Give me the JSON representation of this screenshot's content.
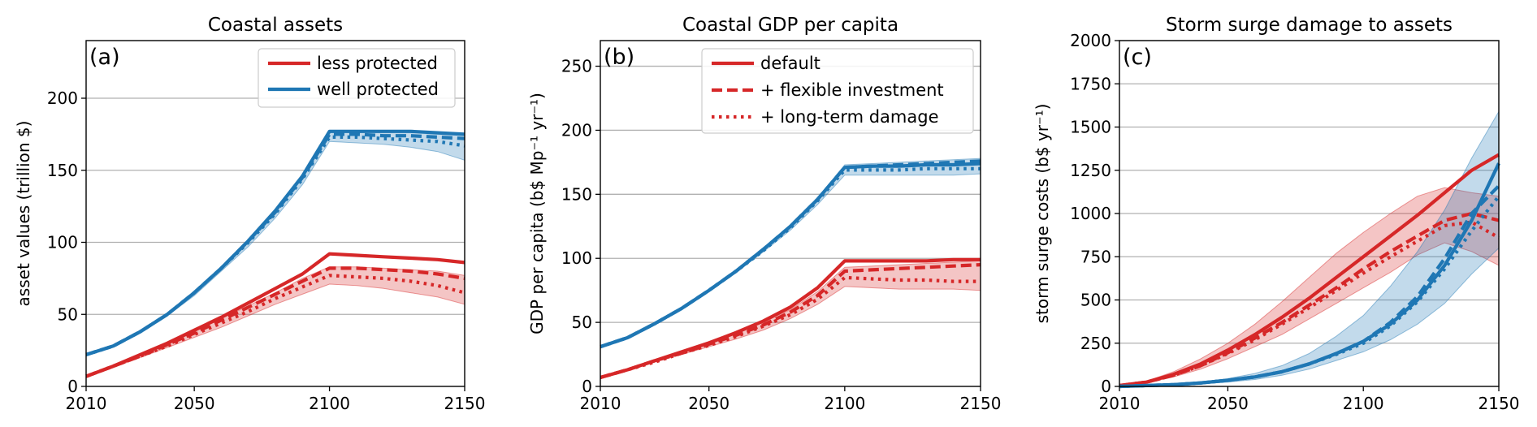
{
  "colors": {
    "red": "#d62728",
    "blue": "#1f77b4",
    "grid": "#b0b0b0"
  },
  "chart_data": [
    {
      "type": "line",
      "panel_label": "(a)",
      "title": "Coastal assets",
      "xlabel": "",
      "ylabel": "asset values (trillion $)",
      "xlim": [
        2010,
        2150
      ],
      "ylim": [
        0,
        240
      ],
      "xticks": [
        2010,
        2050,
        2100,
        2150
      ],
      "yticks": [
        0,
        50,
        100,
        150,
        200
      ],
      "grid": "horizontal",
      "legend": {
        "position": "top-right",
        "entries": [
          {
            "label": "less protected",
            "color": "#d62728",
            "style": "solid"
          },
          {
            "label": "well protected",
            "color": "#1f77b4",
            "style": "solid"
          }
        ]
      },
      "series": [
        {
          "color": "#d62728",
          "style": "solid",
          "x": [
            2010,
            2020,
            2030,
            2040,
            2050,
            2060,
            2070,
            2080,
            2090,
            2100,
            2110,
            2120,
            2130,
            2140,
            2150
          ],
          "y": [
            7,
            14,
            22,
            30,
            39,
            48,
            58,
            68,
            78,
            92,
            91,
            90,
            89,
            88,
            86
          ]
        },
        {
          "color": "#d62728",
          "style": "dashed",
          "x": [
            2010,
            2020,
            2030,
            2040,
            2050,
            2060,
            2070,
            2080,
            2090,
            2100,
            2110,
            2120,
            2130,
            2140,
            2150
          ],
          "y": [
            7,
            14,
            21,
            29,
            37,
            46,
            55,
            64,
            73,
            82,
            82,
            81,
            80,
            78,
            75
          ]
        },
        {
          "color": "#d62728",
          "style": "dotted",
          "x": [
            2010,
            2020,
            2030,
            2040,
            2050,
            2060,
            2070,
            2080,
            2090,
            2100,
            2110,
            2120,
            2130,
            2140,
            2150
          ],
          "y": [
            7,
            14,
            21,
            28,
            36,
            44,
            52,
            61,
            69,
            77,
            76,
            75,
            73,
            70,
            65
          ]
        },
        {
          "color": "#1f77b4",
          "style": "solid",
          "x": [
            2010,
            2020,
            2030,
            2040,
            2050,
            2060,
            2070,
            2080,
            2090,
            2100,
            2110,
            2120,
            2130,
            2140,
            2150
          ],
          "y": [
            22,
            28,
            38,
            50,
            65,
            82,
            101,
            122,
            146,
            177,
            177,
            177,
            177,
            176,
            175
          ]
        },
        {
          "color": "#1f77b4",
          "style": "dashed",
          "x": [
            2010,
            2020,
            2030,
            2040,
            2050,
            2060,
            2070,
            2080,
            2090,
            2100,
            2110,
            2120,
            2130,
            2140,
            2150
          ],
          "y": [
            22,
            28,
            38,
            50,
            65,
            82,
            101,
            121,
            145,
            175,
            175,
            174,
            174,
            173,
            172
          ]
        },
        {
          "color": "#1f77b4",
          "style": "dotted",
          "x": [
            2010,
            2020,
            2030,
            2040,
            2050,
            2060,
            2070,
            2080,
            2090,
            2100,
            2110,
            2120,
            2130,
            2140,
            2150
          ],
          "y": [
            22,
            28,
            38,
            50,
            65,
            82,
            100,
            120,
            144,
            173,
            173,
            172,
            171,
            170,
            167
          ]
        }
      ],
      "bands": [
        {
          "color": "#d62728",
          "x": [
            2010,
            2020,
            2030,
            2040,
            2050,
            2060,
            2070,
            2080,
            2090,
            2100,
            2110,
            2120,
            2130,
            2140,
            2150
          ],
          "lower": [
            7,
            13,
            20,
            27,
            34,
            41,
            49,
            57,
            64,
            71,
            70,
            68,
            65,
            62,
            57
          ],
          "upper": [
            7,
            14,
            22,
            30,
            38,
            47,
            56,
            65,
            75,
            83,
            83,
            82,
            81,
            80,
            77
          ]
        },
        {
          "color": "#1f77b4",
          "x": [
            2010,
            2020,
            2030,
            2040,
            2050,
            2060,
            2070,
            2080,
            2090,
            2100,
            2110,
            2120,
            2130,
            2140,
            2150
          ],
          "lower": [
            22,
            28,
            37,
            49,
            63,
            80,
            97,
            117,
            140,
            170,
            169,
            168,
            166,
            163,
            157
          ],
          "upper": [
            22,
            28,
            38,
            50,
            65,
            82,
            101,
            122,
            146,
            177,
            177,
            177,
            177,
            176,
            175
          ]
        }
      ]
    },
    {
      "type": "line",
      "panel_label": "(b)",
      "title": "Coastal GDP per capita",
      "xlabel": "",
      "ylabel": "GDP per capita (b$ Mp⁻¹ yr⁻¹)",
      "xlim": [
        2010,
        2150
      ],
      "ylim": [
        0,
        270
      ],
      "xticks": [
        2010,
        2050,
        2100,
        2150
      ],
      "yticks": [
        0,
        50,
        100,
        150,
        200,
        250
      ],
      "grid": "horizontal",
      "legend": {
        "position": "top-right",
        "entries": [
          {
            "label": "default",
            "color": "#d62728",
            "style": "solid"
          },
          {
            "label": "+ flexible investment",
            "color": "#d62728",
            "style": "dashed"
          },
          {
            "label": "+ long-term damage",
            "color": "#d62728",
            "style": "dotted"
          }
        ]
      },
      "series": [
        {
          "color": "#d62728",
          "style": "solid",
          "x": [
            2010,
            2020,
            2030,
            2040,
            2050,
            2060,
            2070,
            2080,
            2090,
            2100,
            2110,
            2120,
            2130,
            2140,
            2150
          ],
          "y": [
            7,
            13,
            20,
            27,
            34,
            42,
            51,
            62,
            77,
            98,
            98,
            98,
            98,
            99,
            99
          ]
        },
        {
          "color": "#d62728",
          "style": "dashed",
          "x": [
            2010,
            2020,
            2030,
            2040,
            2050,
            2060,
            2070,
            2080,
            2090,
            2100,
            2110,
            2120,
            2130,
            2140,
            2150
          ],
          "y": [
            7,
            13,
            20,
            26,
            33,
            40,
            48,
            58,
            71,
            90,
            91,
            92,
            93,
            94,
            95
          ]
        },
        {
          "color": "#d62728",
          "style": "dotted",
          "x": [
            2010,
            2020,
            2030,
            2040,
            2050,
            2060,
            2070,
            2080,
            2090,
            2100,
            2110,
            2120,
            2130,
            2140,
            2150
          ],
          "y": [
            7,
            13,
            19,
            26,
            32,
            39,
            47,
            56,
            68,
            85,
            84,
            83,
            83,
            82,
            82
          ]
        },
        {
          "color": "#1f77b4",
          "style": "solid",
          "x": [
            2010,
            2020,
            2030,
            2040,
            2050,
            2060,
            2070,
            2080,
            2090,
            2100,
            2110,
            2120,
            2130,
            2140,
            2150
          ],
          "y": [
            31,
            38,
            49,
            61,
            75,
            90,
            107,
            125,
            146,
            171,
            172,
            172,
            173,
            173,
            174
          ]
        },
        {
          "color": "#1f77b4",
          "style": "dashed",
          "x": [
            2010,
            2020,
            2030,
            2040,
            2050,
            2060,
            2070,
            2080,
            2090,
            2100,
            2110,
            2120,
            2130,
            2140,
            2150
          ],
          "y": [
            31,
            38,
            49,
            61,
            75,
            90,
            107,
            125,
            146,
            171,
            172,
            173,
            174,
            175,
            176
          ]
        },
        {
          "color": "#1f77b4",
          "style": "dotted",
          "x": [
            2010,
            2020,
            2030,
            2040,
            2050,
            2060,
            2070,
            2080,
            2090,
            2100,
            2110,
            2120,
            2130,
            2140,
            2150
          ],
          "y": [
            31,
            38,
            49,
            61,
            75,
            90,
            106,
            124,
            145,
            169,
            169,
            169,
            170,
            170,
            170
          ]
        }
      ],
      "bands": [
        {
          "color": "#d62728",
          "x": [
            2010,
            2020,
            2030,
            2040,
            2050,
            2060,
            2070,
            2080,
            2090,
            2100,
            2110,
            2120,
            2130,
            2140,
            2150
          ],
          "lower": [
            7,
            13,
            19,
            25,
            31,
            37,
            44,
            53,
            64,
            78,
            77,
            76,
            76,
            76,
            75
          ],
          "upper": [
            7,
            13,
            20,
            27,
            34,
            41,
            50,
            60,
            74,
            93,
            94,
            95,
            96,
            97,
            98
          ]
        },
        {
          "color": "#1f77b4",
          "x": [
            2010,
            2020,
            2030,
            2040,
            2050,
            2060,
            2070,
            2080,
            2090,
            2100,
            2110,
            2120,
            2130,
            2140,
            2150
          ],
          "lower": [
            31,
            38,
            48,
            60,
            74,
            89,
            105,
            122,
            142,
            165,
            165,
            165,
            165,
            165,
            166
          ],
          "upper": [
            31,
            38,
            49,
            61,
            75,
            90,
            107,
            125,
            147,
            173,
            174,
            175,
            176,
            177,
            178
          ]
        }
      ]
    },
    {
      "type": "line",
      "panel_label": "(c)",
      "title": "Storm surge damage to assets",
      "xlabel": "",
      "ylabel": "storm surge costs (b$ yr⁻¹)",
      "xlim": [
        2010,
        2150
      ],
      "ylim": [
        0,
        2000
      ],
      "xticks": [
        2010,
        2050,
        2100,
        2150
      ],
      "yticks": [
        0,
        250,
        500,
        750,
        1000,
        1250,
        1500,
        1750,
        2000
      ],
      "grid": "horizontal",
      "series": [
        {
          "color": "#d62728",
          "style": "solid",
          "x": [
            2010,
            2020,
            2030,
            2040,
            2050,
            2060,
            2070,
            2080,
            2090,
            2100,
            2110,
            2120,
            2130,
            2140,
            2150
          ],
          "y": [
            5,
            25,
            70,
            130,
            210,
            300,
            400,
            510,
            630,
            750,
            870,
            990,
            1120,
            1250,
            1340
          ]
        },
        {
          "color": "#d62728",
          "style": "dashed",
          "x": [
            2010,
            2020,
            2030,
            2040,
            2050,
            2060,
            2070,
            2080,
            2090,
            2100,
            2110,
            2120,
            2130,
            2140,
            2150
          ],
          "y": [
            5,
            25,
            65,
            120,
            195,
            280,
            370,
            470,
            570,
            680,
            780,
            870,
            960,
            1000,
            960
          ]
        },
        {
          "color": "#d62728",
          "style": "dotted",
          "x": [
            2010,
            2020,
            2030,
            2040,
            2050,
            2060,
            2070,
            2080,
            2090,
            2100,
            2110,
            2120,
            2130,
            2140,
            2150
          ],
          "y": [
            5,
            25,
            65,
            120,
            190,
            270,
            360,
            455,
            555,
            655,
            750,
            840,
            930,
            950,
            860
          ]
        },
        {
          "color": "#1f77b4",
          "style": "solid",
          "x": [
            2010,
            2020,
            2030,
            2040,
            2050,
            2060,
            2070,
            2080,
            2090,
            2100,
            2110,
            2120,
            2130,
            2140,
            2150
          ],
          "y": [
            0,
            5,
            10,
            20,
            35,
            55,
            85,
            130,
            190,
            260,
            360,
            500,
            700,
            960,
            1290
          ]
        },
        {
          "color": "#1f77b4",
          "style": "dashed",
          "x": [
            2010,
            2020,
            2030,
            2040,
            2050,
            2060,
            2070,
            2080,
            2090,
            2100,
            2110,
            2120,
            2130,
            2140,
            2150
          ],
          "y": [
            0,
            5,
            10,
            20,
            35,
            55,
            85,
            130,
            190,
            260,
            370,
            520,
            740,
            1000,
            1160
          ]
        },
        {
          "color": "#1f77b4",
          "style": "dotted",
          "x": [
            2010,
            2020,
            2030,
            2040,
            2050,
            2060,
            2070,
            2080,
            2090,
            2100,
            2110,
            2120,
            2130,
            2140,
            2150
          ],
          "y": [
            0,
            5,
            10,
            20,
            35,
            55,
            85,
            130,
            185,
            250,
            350,
            490,
            680,
            900,
            1100
          ]
        }
      ],
      "bands": [
        {
          "color": "#d62728",
          "x": [
            2010,
            2020,
            2030,
            2040,
            2050,
            2060,
            2070,
            2080,
            2090,
            2100,
            2110,
            2120,
            2130,
            2140,
            2150
          ],
          "lower": [
            5,
            20,
            55,
            100,
            160,
            230,
            300,
            390,
            480,
            570,
            660,
            760,
            830,
            780,
            700
          ],
          "upper": [
            5,
            30,
            85,
            160,
            250,
            360,
            490,
            630,
            770,
            890,
            1000,
            1100,
            1150,
            1120,
            1100
          ]
        },
        {
          "color": "#1f77b4",
          "x": [
            2010,
            2020,
            2030,
            2040,
            2050,
            2060,
            2070,
            2080,
            2090,
            2100,
            2110,
            2120,
            2130,
            2140,
            2150
          ],
          "lower": [
            0,
            4,
            8,
            15,
            25,
            40,
            65,
            100,
            150,
            200,
            270,
            360,
            480,
            650,
            800
          ],
          "upper": [
            0,
            6,
            13,
            25,
            45,
            75,
            120,
            190,
            290,
            410,
            580,
            780,
            1020,
            1320,
            1590
          ]
        }
      ]
    }
  ]
}
